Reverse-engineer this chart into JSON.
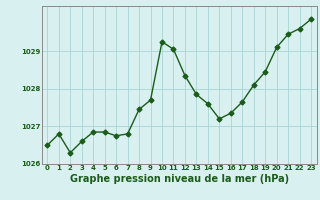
{
  "x": [
    0,
    1,
    2,
    3,
    4,
    5,
    6,
    7,
    8,
    9,
    10,
    11,
    12,
    13,
    14,
    15,
    16,
    17,
    18,
    19,
    20,
    21,
    22,
    23
  ],
  "y": [
    1026.5,
    1026.8,
    1026.3,
    1026.6,
    1026.85,
    1026.85,
    1026.75,
    1026.8,
    1027.45,
    1027.7,
    1029.25,
    1029.05,
    1028.35,
    1027.85,
    1027.6,
    1027.2,
    1027.35,
    1027.65,
    1028.1,
    1028.45,
    1029.1,
    1029.45,
    1029.6,
    1029.85
  ],
  "line_color": "#1a5c1a",
  "marker": "D",
  "markersize": 2.5,
  "linewidth": 1.0,
  "bg_color": "#d9f0f0",
  "grid_color": "#aad4d4",
  "xlabel": "Graphe pression niveau de la mer (hPa)",
  "ylabel": "",
  "ylim": [
    1026.0,
    1030.2
  ],
  "xlim": [
    -0.5,
    23.5
  ],
  "yticks": [
    1026,
    1027,
    1028,
    1029
  ],
  "xticks": [
    0,
    1,
    2,
    3,
    4,
    5,
    6,
    7,
    8,
    9,
    10,
    11,
    12,
    13,
    14,
    15,
    16,
    17,
    18,
    19,
    20,
    21,
    22,
    23
  ],
  "tick_color": "#1a5c1a",
  "tick_fontsize": 5.0,
  "xlabel_fontsize": 7.0,
  "spine_color": "#888888"
}
